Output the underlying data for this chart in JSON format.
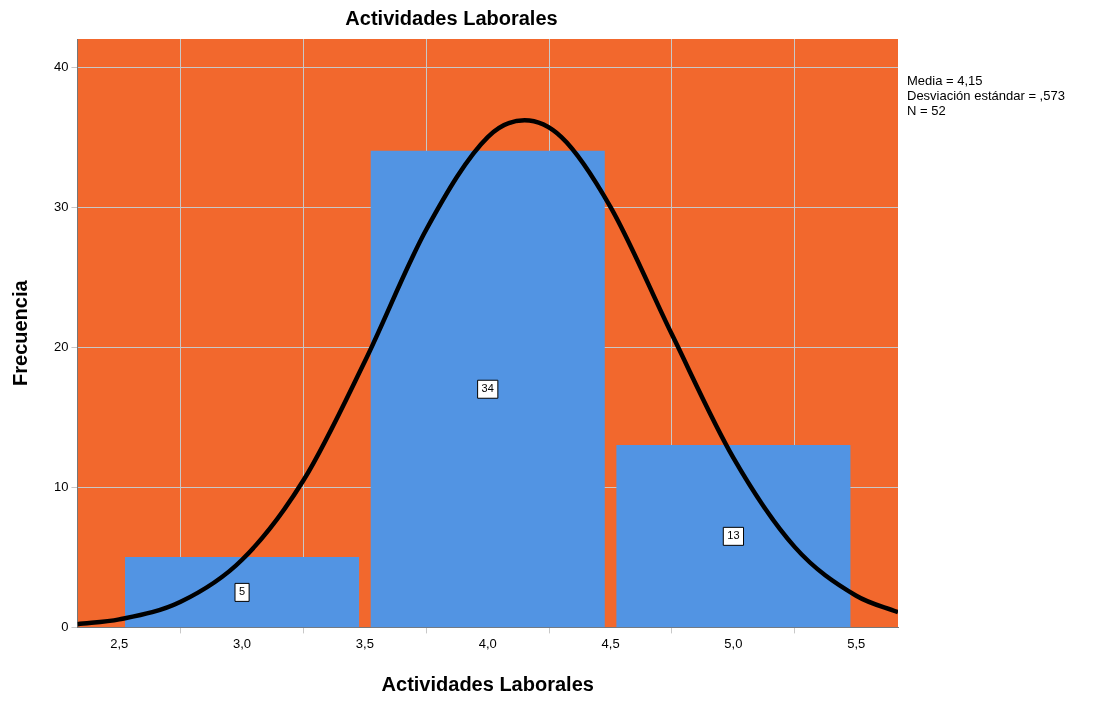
{
  "chart_data": {
    "type": "histogram",
    "title": "Actividades Laborales",
    "xlabel": "Actividades Laborales",
    "ylabel": "Frecuencia",
    "bins": [
      2.5,
      3.5,
      4.5,
      5.5
    ],
    "values": [
      5,
      34,
      13
    ],
    "color": "#5294e3",
    "value_labels": [
      "5",
      "34",
      "13"
    ],
    "series": [
      {
        "type": "line",
        "color": "#000000",
        "x": [
          2.33,
          2.5,
          2.75,
          3.0,
          3.25,
          3.5,
          3.75,
          4.0,
          4.15,
          4.3,
          4.5,
          4.75,
          5.0,
          5.25,
          5.5,
          5.67
        ],
        "values": [
          0.23,
          0.57,
          1.83,
          4.83,
          10.5,
          19.0,
          28.4,
          35.0,
          36.2,
          35.0,
          30.0,
          20.9,
          12.1,
          5.73,
          2.26,
          1.08
        ]
      }
    ],
    "xlim": [
      2.33,
      5.67
    ],
    "xticks": [
      {
        "value": 2.5,
        "label": "2,5"
      },
      {
        "value": 3.0,
        "label": "3,0"
      },
      {
        "value": 3.5,
        "label": "3,5"
      },
      {
        "value": 4.0,
        "label": "4,0"
      },
      {
        "value": 4.5,
        "label": "4,5"
      },
      {
        "value": 5.0,
        "label": "5,0"
      },
      {
        "value": 5.5,
        "label": "5,5"
      }
    ],
    "ylim": [
      0,
      42
    ],
    "yticks": [
      0,
      10,
      20,
      30,
      40
    ],
    "grid": true,
    "legend": false,
    "marker": "none",
    "annotations": [
      "Media = 4,15",
      "Desviación estándar = ,573",
      "N = 52"
    ]
  }
}
